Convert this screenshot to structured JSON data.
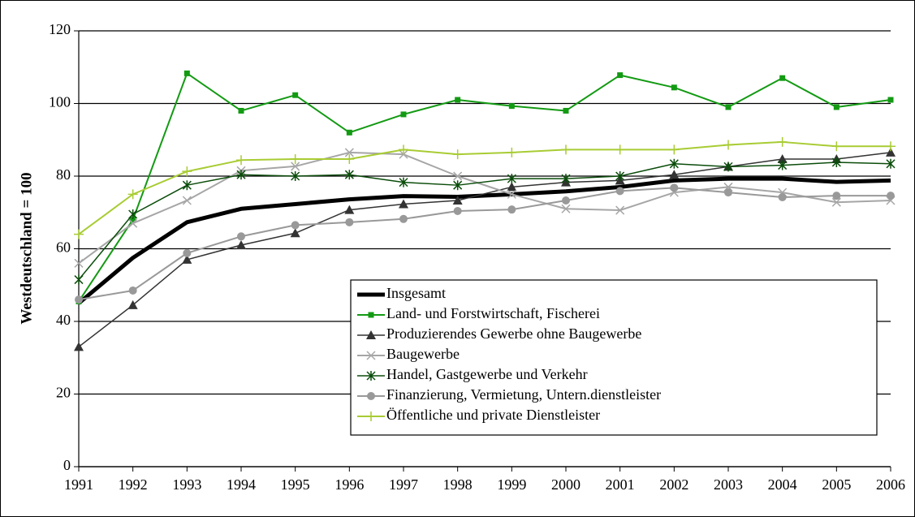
{
  "chart_data": {
    "type": "line",
    "y_label": "Westdeutschland = 100",
    "x": [
      1991,
      1992,
      1993,
      1994,
      1995,
      1996,
      1997,
      1998,
      1999,
      2000,
      2001,
      2002,
      2003,
      2004,
      2005,
      2006
    ],
    "xlim": [
      1991,
      2006
    ],
    "xticks": [
      1991,
      1992,
      1993,
      1994,
      1995,
      1996,
      1997,
      1998,
      1999,
      2000,
      2001,
      2002,
      2003,
      2004,
      2005,
      2006
    ],
    "ylim": [
      0,
      120
    ],
    "yticks": [
      0,
      20,
      40,
      60,
      80,
      100,
      120
    ],
    "grid": true,
    "legend": "lower right",
    "series": [
      {
        "name": "Insgesamt",
        "color": "#000000",
        "width": 5,
        "marker": "none",
        "values": [
          45,
          57.5,
          67.3,
          71,
          72.3,
          73.6,
          74.5,
          74.3,
          75,
          75.8,
          77,
          78.8,
          79.3,
          79.3,
          78.4,
          78.8
        ]
      },
      {
        "name": "Land- und Forstwirtschaft, Fischerei",
        "color": "#139a13",
        "width": 2,
        "marker": "square",
        "values": [
          45.5,
          68,
          108.3,
          98,
          102.3,
          92,
          97,
          101,
          99.3,
          98,
          107.8,
          104.4,
          99,
          107,
          99,
          101
        ]
      },
      {
        "name": "Produzierendes Gewerbe ohne Baugewerbe",
        "color": "#333333",
        "width": 1.5,
        "marker": "triangle",
        "values": [
          33,
          44.5,
          57,
          61,
          64.3,
          70.7,
          72.3,
          73.3,
          77,
          78.3,
          78.8,
          80.4,
          82.6,
          84.7,
          84.7,
          86.5
        ]
      },
      {
        "name": "Baugewerbe",
        "color": "#a6a6a6",
        "width": 2,
        "marker": "x",
        "values": [
          56,
          67,
          73.3,
          81.5,
          82.7,
          86.5,
          86,
          80,
          75,
          71,
          70.6,
          75.5,
          77,
          75.5,
          72.8,
          73.3
        ]
      },
      {
        "name": "Handel, Gastgewerbe und Verkehr",
        "color": "#0b4d0b",
        "width": 1.5,
        "marker": "asterisk",
        "values": [
          51.5,
          69.5,
          77.5,
          80.4,
          80,
          80.4,
          78.3,
          77.5,
          79.3,
          79.3,
          80,
          83.4,
          82.6,
          83,
          83.8,
          83.4
        ]
      },
      {
        "name": "Finanzierung, Vermietung, Untern.dienstleister",
        "color": "#999999",
        "width": 2,
        "marker": "circle",
        "values": [
          46,
          48.5,
          58.8,
          63.4,
          66.5,
          67.3,
          68.2,
          70.4,
          70.8,
          73.3,
          75.9,
          76.8,
          75.5,
          74.2,
          74.6,
          74.6
        ]
      },
      {
        "name": "Öffentliche und private Dienstleister",
        "color": "#a8cc33",
        "width": 2,
        "marker": "plus",
        "values": [
          64,
          75,
          81.3,
          84.4,
          84.7,
          84.7,
          87.3,
          86,
          86.5,
          87.3,
          87.3,
          87.3,
          88.6,
          89.4,
          88.2,
          88.2
        ]
      }
    ]
  }
}
